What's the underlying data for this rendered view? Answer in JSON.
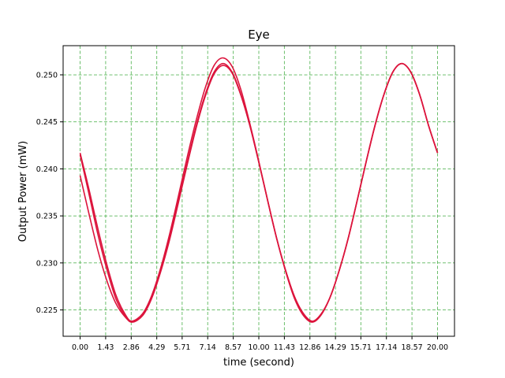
{
  "chart_data": {
    "type": "line",
    "title": "Eye",
    "xlabel": "time (second)",
    "ylabel": "Output Power (mW)",
    "xlim": [
      -0.95,
      20.95
    ],
    "ylim": [
      0.2222,
      0.2531
    ],
    "x_ticks": [
      0.0,
      1.43,
      2.86,
      4.29,
      5.71,
      7.14,
      8.57,
      10.0,
      11.43,
      12.86,
      14.29,
      15.71,
      17.14,
      18.57,
      20.0
    ],
    "x_tick_labels": [
      "0.00",
      "1.43",
      "2.86",
      "4.29",
      "5.71",
      "7.14",
      "8.57",
      "10.00",
      "11.43",
      "12.86",
      "14.29",
      "15.71",
      "17.14",
      "18.57",
      "20.00"
    ],
    "y_ticks": [
      0.225,
      0.23,
      0.235,
      0.24,
      0.245,
      0.25
    ],
    "y_tick_labels": [
      "0.225",
      "0.230",
      "0.235",
      "0.240",
      "0.245",
      "0.250"
    ],
    "grid": true,
    "legend": "none",
    "colors": {
      "line": "#dc143c",
      "grid": "#5cb85c",
      "axes": "#000000"
    },
    "series": [
      {
        "x": [
          0,
          0.5,
          1,
          1.5,
          2,
          2.5,
          2.9,
          3.5,
          4,
          4.5,
          5,
          5.5,
          6,
          6.5,
          7,
          7.5,
          8,
          8.5,
          9,
          9.5,
          10,
          10.5,
          11,
          11.5,
          12,
          12.5,
          13,
          13.5,
          14,
          14.5,
          15,
          15.5,
          16,
          16.5,
          17,
          17.5,
          18,
          18.5,
          19,
          19.5,
          20
        ],
        "values": [
          0.2417,
          0.2378,
          0.2336,
          0.2298,
          0.2266,
          0.2246,
          0.2238,
          0.2246,
          0.2264,
          0.2292,
          0.2326,
          0.2366,
          0.2407,
          0.2446,
          0.2479,
          0.2503,
          0.2512,
          0.2503,
          0.2479,
          0.2446,
          0.2407,
          0.2366,
          0.2326,
          0.2292,
          0.2264,
          0.2246,
          0.2238,
          0.2246,
          0.2264,
          0.2292,
          0.2326,
          0.2366,
          0.2407,
          0.2446,
          0.2479,
          0.2503,
          0.2512,
          0.2503,
          0.2479,
          0.2446,
          0.2417
        ]
      },
      {
        "x": [
          0,
          0.5,
          1,
          1.5,
          2,
          2.5,
          2.9,
          3.5,
          4,
          4.5,
          5,
          5.5,
          6,
          6.5,
          7,
          7.5,
          8,
          8.5,
          9,
          9.5,
          10,
          10.5,
          11,
          11.5,
          12,
          12.5,
          13,
          13.5,
          14,
          14.5,
          15,
          15.5,
          16,
          16.5,
          17,
          17.5,
          18,
          18.5,
          19,
          19.5,
          20
        ],
        "values": [
          0.2393,
          0.2352,
          0.2313,
          0.2281,
          0.2257,
          0.2243,
          0.2238,
          0.2246,
          0.2265,
          0.2294,
          0.233,
          0.2371,
          0.2413,
          0.2452,
          0.2486,
          0.251,
          0.2518,
          0.2509,
          0.2484,
          0.2448,
          0.2408,
          0.2366,
          0.2326,
          0.2292,
          0.2264,
          0.2246,
          0.2238,
          0.2246,
          0.2264,
          0.2292,
          0.2326,
          0.2366,
          0.2407,
          0.2446,
          0.2479,
          0.2503,
          0.2512,
          0.2503,
          0.2479,
          0.2446,
          0.2417
        ]
      },
      {
        "x": [
          0,
          0.5,
          1,
          1.5,
          2,
          2.5,
          2.9,
          3.5,
          4,
          4.5,
          5,
          5.5,
          6,
          6.5,
          7,
          7.5,
          8,
          8.5,
          9,
          9.5,
          10,
          10.5,
          11,
          11.5,
          12,
          12.5,
          13,
          13.5,
          14,
          14.5,
          15,
          15.5,
          16,
          16.5,
          17,
          17.5,
          18,
          18.5,
          19,
          19.5,
          20
        ],
        "values": [
          0.2415,
          0.2373,
          0.233,
          0.2293,
          0.2262,
          0.2244,
          0.2237,
          0.2244,
          0.2262,
          0.229,
          0.2324,
          0.2364,
          0.2405,
          0.2444,
          0.2477,
          0.2501,
          0.251,
          0.2502,
          0.2478,
          0.2446,
          0.2407,
          0.2366,
          0.2326,
          0.2291,
          0.2262,
          0.2244,
          0.2237,
          0.2245,
          0.2264,
          0.2292,
          0.2326,
          0.2366,
          0.2407,
          0.2446,
          0.2479,
          0.2503,
          0.2512,
          0.2503,
          0.2479,
          0.2446,
          0.2417
        ]
      }
    ]
  }
}
